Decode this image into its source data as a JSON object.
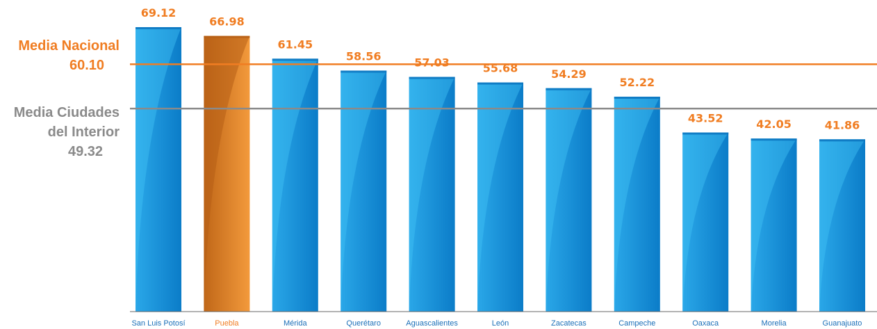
{
  "chart_data": {
    "type": "bar",
    "categories": [
      "San Luis Potosí",
      "Puebla",
      "Mérida",
      "Querétaro",
      "Aguascalientes",
      "León",
      "Zacatecas",
      "Campeche",
      "Oaxaca",
      "Morelia",
      "Guanajuato"
    ],
    "values": [
      69.12,
      66.98,
      61.45,
      58.56,
      57.03,
      55.68,
      54.29,
      52.22,
      43.52,
      42.05,
      41.86
    ],
    "value_labels": [
      "69.12",
      "66.98",
      "61.45",
      "58.56",
      "57.03",
      "55.68",
      "54.29",
      "52.22",
      "43.52",
      "42.05",
      "41.86"
    ],
    "highlight_category": "Puebla",
    "ylim": [
      0,
      70
    ],
    "grid": false,
    "legend": "none",
    "reference_lines": [
      {
        "name_lines": [
          "Media Nacional"
        ],
        "value": 60.1,
        "label": "60.10",
        "color": "#f07d22"
      },
      {
        "name_lines": [
          "Media Ciudades",
          "del Interior"
        ],
        "value": 49.32,
        "label": "49.32",
        "color": "#8a8a8a"
      }
    ],
    "colors": {
      "bar": "#1b96dc",
      "bar_light": "#41c0f3",
      "bar_dark": "#0a72bd",
      "highlight": "#f08a2a",
      "highlight_dark": "#b75f15",
      "value_label": "#f07d22",
      "category_label": "#1a6fb8",
      "highlight_category_label": "#f07d22",
      "axis": "#666666"
    }
  }
}
